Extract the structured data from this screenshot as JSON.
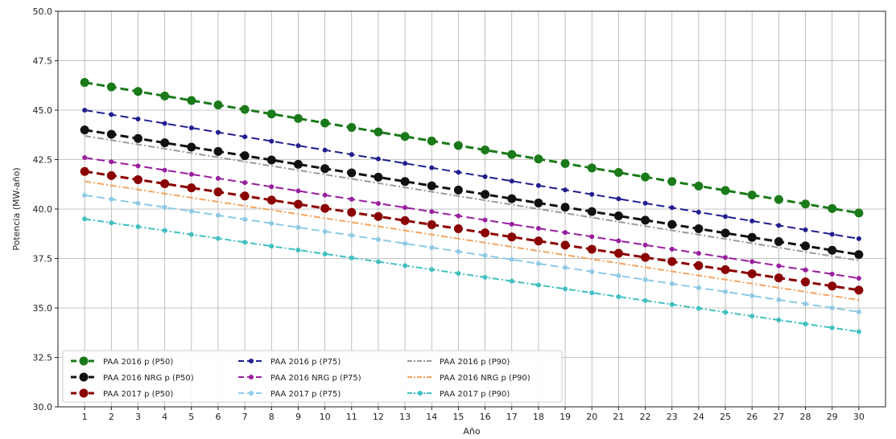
{
  "chart_data": {
    "type": "line",
    "title": "",
    "xlabel": "Año",
    "ylabel": "Potencia (MW-año)",
    "xlim": [
      0,
      31
    ],
    "ylim": [
      30.0,
      50.0
    ],
    "grid": true,
    "legend_location": "lower-left",
    "x": [
      1,
      2,
      3,
      4,
      5,
      6,
      7,
      8,
      9,
      10,
      11,
      12,
      13,
      14,
      15,
      16,
      17,
      18,
      19,
      20,
      21,
      22,
      23,
      24,
      25,
      26,
      27,
      28,
      29,
      30
    ],
    "yticks": [
      "30.0",
      "32.5",
      "35.0",
      "37.5",
      "40.0",
      "42.5",
      "45.0",
      "47.5",
      "50.0"
    ],
    "series": [
      {
        "name": "PAA 2016 p (P50)",
        "color": "#1a7a1a",
        "style": "dash",
        "marker": "large",
        "start": 46.4,
        "end": 39.8
      },
      {
        "name": "PAA 2016 NRG p (P50)",
        "color": "#111111",
        "style": "dash",
        "marker": "large",
        "start": 44.0,
        "end": 37.7
      },
      {
        "name": "PAA 2017 p (P50)",
        "color": "#8b0000",
        "style": "dash",
        "marker": "large",
        "start": 41.9,
        "end": 35.9
      },
      {
        "name": "PAA 2016 p (P75)",
        "color": "#1f1f8f",
        "style": "dash",
        "marker": "small",
        "start": 45.0,
        "end": 38.5
      },
      {
        "name": "PAA 2016 NRG p (P75)",
        "color": "#9a1fa0",
        "style": "dash",
        "marker": "small",
        "start": 42.6,
        "end": 36.5
      },
      {
        "name": "PAA 2017 p (P75)",
        "color": "#8ecae6",
        "style": "dash",
        "marker": "small",
        "start": 40.7,
        "end": 34.8
      },
      {
        "name": "PAA 2016 p (P90)",
        "color": "#9a9a9a",
        "style": "dashdot",
        "marker": "none",
        "start": 43.7,
        "end": 37.4
      },
      {
        "name": "PAA 2016 NRG p (P90)",
        "color": "#f4a460",
        "style": "dashdot",
        "marker": "none",
        "start": 41.4,
        "end": 35.4
      },
      {
        "name": "PAA 2017 p (P90)",
        "color": "#40c0c0",
        "style": "dashdot",
        "marker": "small",
        "start": 39.5,
        "end": 33.8
      }
    ]
  }
}
